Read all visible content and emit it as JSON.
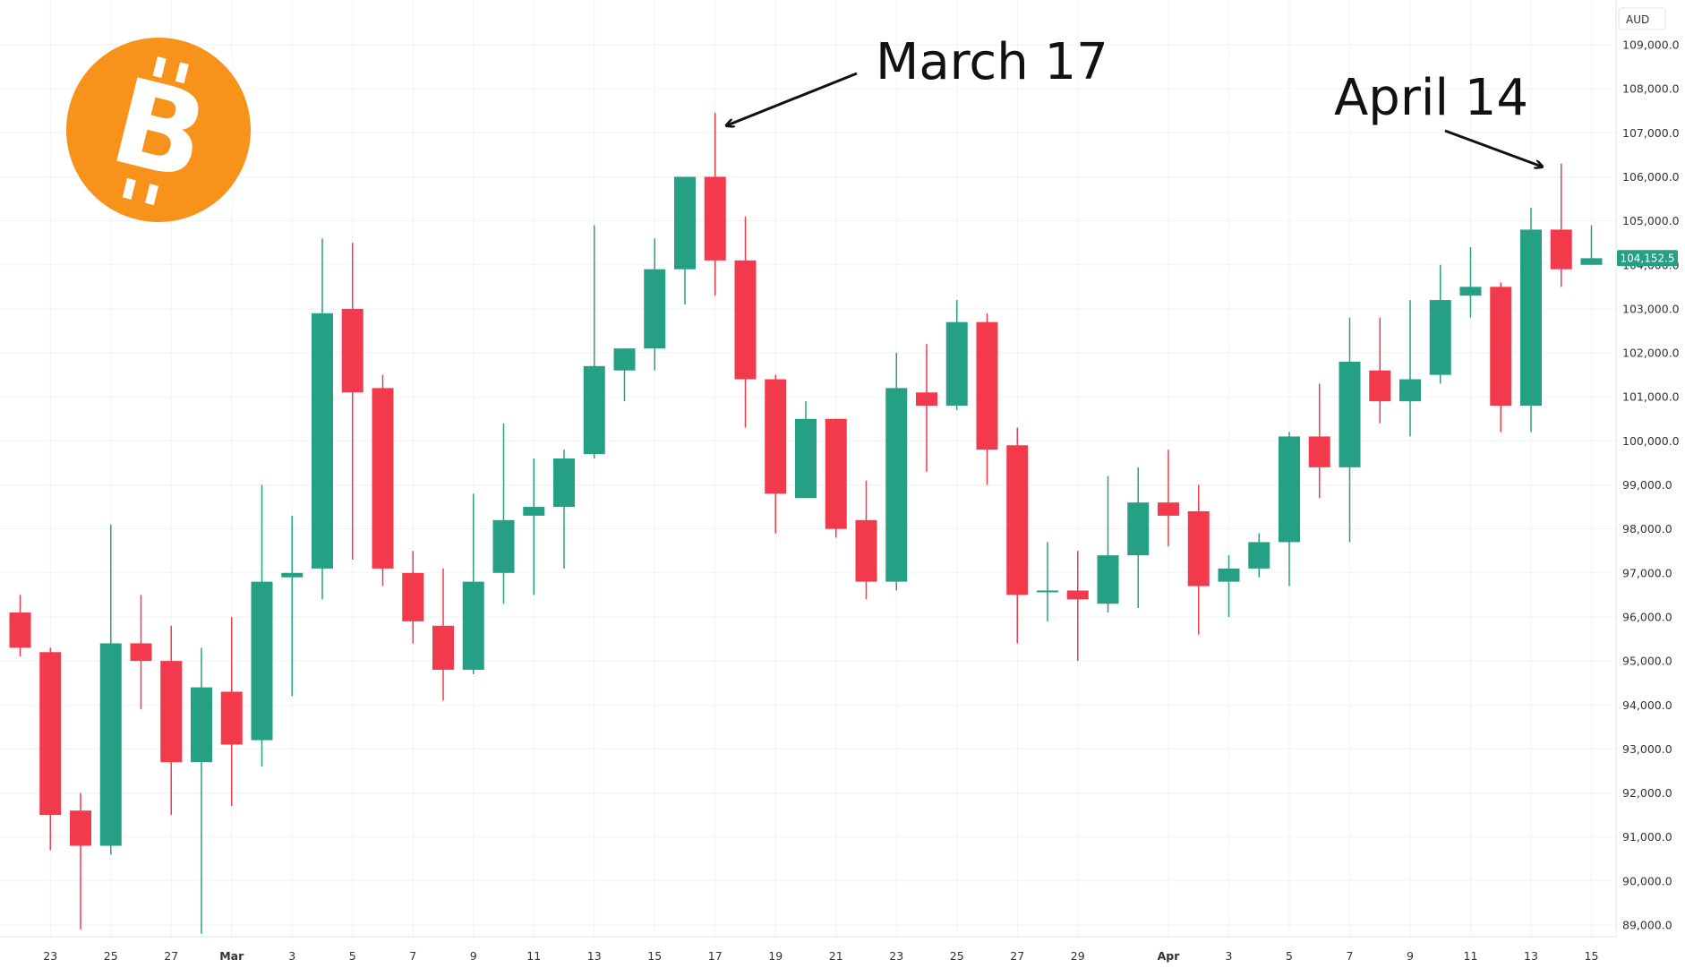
{
  "colors": {
    "up": "#26a085",
    "down": "#f23a4c",
    "grid": "#f0f3f7",
    "axis_text": "#333333",
    "logo_bg": "#f7931a",
    "logo_fg": "#ffffff",
    "annotation": "#111111"
  },
  "logo": {
    "icon": "bitcoin-icon",
    "glyph": "B"
  },
  "chart_data": {
    "type": "candlestick",
    "currency": "AUD",
    "last_price_label": "104,152.5",
    "last_price": 104152.5,
    "ylim": [
      88700,
      109500
    ],
    "y_ticks": [
      89000,
      90000,
      91000,
      92000,
      93000,
      94000,
      95000,
      96000,
      97000,
      98000,
      99000,
      100000,
      101000,
      102000,
      103000,
      104000,
      105000,
      106000,
      107000,
      108000,
      109000
    ],
    "y_tick_labels": [
      "89,000.0",
      "90,000.0",
      "91,000.0",
      "92,000.0",
      "93,000.0",
      "94,000.0",
      "95,000.0",
      "96,000.0",
      "97,000.0",
      "98,000.0",
      "99,000.0",
      "100,000.0",
      "101,000.0",
      "102,000.0",
      "103,000.0",
      "104,000.0",
      "105,000.0",
      "106,000.0",
      "107,000.0",
      "108,000.0",
      "109,000.0"
    ],
    "x_tick_labels": [
      {
        "label": "23",
        "index": 1,
        "bold": false
      },
      {
        "label": "25",
        "index": 3,
        "bold": false
      },
      {
        "label": "27",
        "index": 5,
        "bold": false
      },
      {
        "label": "Mar",
        "index": 7,
        "bold": true
      },
      {
        "label": "3",
        "index": 9,
        "bold": false
      },
      {
        "label": "5",
        "index": 11,
        "bold": false
      },
      {
        "label": "7",
        "index": 13,
        "bold": false
      },
      {
        "label": "9",
        "index": 15,
        "bold": false
      },
      {
        "label": "11",
        "index": 17,
        "bold": false
      },
      {
        "label": "13",
        "index": 19,
        "bold": false
      },
      {
        "label": "15",
        "index": 21,
        "bold": false
      },
      {
        "label": "17",
        "index": 23,
        "bold": false
      },
      {
        "label": "19",
        "index": 25,
        "bold": false
      },
      {
        "label": "21",
        "index": 27,
        "bold": false
      },
      {
        "label": "23",
        "index": 29,
        "bold": false
      },
      {
        "label": "25",
        "index": 31,
        "bold": false
      },
      {
        "label": "27",
        "index": 33,
        "bold": false
      },
      {
        "label": "29",
        "index": 35,
        "bold": false
      },
      {
        "label": "Apr",
        "index": 38,
        "bold": true
      },
      {
        "label": "3",
        "index": 40,
        "bold": false
      },
      {
        "label": "5",
        "index": 42,
        "bold": false
      },
      {
        "label": "7",
        "index": 44,
        "bold": false
      },
      {
        "label": "9",
        "index": 46,
        "bold": false
      },
      {
        "label": "11",
        "index": 48,
        "bold": false
      },
      {
        "label": "13",
        "index": 50,
        "bold": false
      },
      {
        "label": "15",
        "index": 52,
        "bold": false
      }
    ],
    "candles": [
      {
        "o": 96100,
        "h": 96500,
        "l": 95100,
        "c": 95300
      },
      {
        "o": 95200,
        "h": 95300,
        "l": 90700,
        "c": 91500
      },
      {
        "o": 91600,
        "h": 92000,
        "l": 88900,
        "c": 90800
      },
      {
        "o": 90800,
        "h": 98100,
        "l": 90600,
        "c": 95400
      },
      {
        "o": 95400,
        "h": 96500,
        "l": 93900,
        "c": 95000
      },
      {
        "o": 95000,
        "h": 95800,
        "l": 91500,
        "c": 92700
      },
      {
        "o": 92700,
        "h": 95300,
        "l": 88800,
        "c": 94400
      },
      {
        "o": 94300,
        "h": 96000,
        "l": 91700,
        "c": 93100
      },
      {
        "o": 93200,
        "h": 99000,
        "l": 92600,
        "c": 96800
      },
      {
        "o": 96900,
        "h": 98300,
        "l": 94200,
        "c": 97000
      },
      {
        "o": 97100,
        "h": 104600,
        "l": 96400,
        "c": 102900
      },
      {
        "o": 103000,
        "h": 104500,
        "l": 97300,
        "c": 101100
      },
      {
        "o": 101200,
        "h": 101500,
        "l": 96700,
        "c": 97100
      },
      {
        "o": 97000,
        "h": 97500,
        "l": 95400,
        "c": 95900
      },
      {
        "o": 95800,
        "h": 97100,
        "l": 94100,
        "c": 94800
      },
      {
        "o": 94800,
        "h": 98800,
        "l": 94700,
        "c": 96800
      },
      {
        "o": 97000,
        "h": 100400,
        "l": 96300,
        "c": 98200
      },
      {
        "o": 98300,
        "h": 99600,
        "l": 96500,
        "c": 98500
      },
      {
        "o": 98500,
        "h": 99800,
        "l": 97100,
        "c": 99600
      },
      {
        "o": 99700,
        "h": 104900,
        "l": 99600,
        "c": 101700
      },
      {
        "o": 101600,
        "h": 102100,
        "l": 100900,
        "c": 102100
      },
      {
        "o": 102100,
        "h": 104600,
        "l": 101600,
        "c": 103900
      },
      {
        "o": 103900,
        "h": 106000,
        "l": 103100,
        "c": 106000
      },
      {
        "o": 106000,
        "h": 107450,
        "l": 103300,
        "c": 104100
      },
      {
        "o": 104100,
        "h": 105100,
        "l": 100300,
        "c": 101400
      },
      {
        "o": 101400,
        "h": 101500,
        "l": 97900,
        "c": 98800
      },
      {
        "o": 98700,
        "h": 100900,
        "l": 98700,
        "c": 100500
      },
      {
        "o": 100500,
        "h": 100500,
        "l": 97800,
        "c": 98000
      },
      {
        "o": 98200,
        "h": 99100,
        "l": 96400,
        "c": 96800
      },
      {
        "o": 96800,
        "h": 102000,
        "l": 96600,
        "c": 101200
      },
      {
        "o": 101100,
        "h": 102200,
        "l": 99300,
        "c": 100800
      },
      {
        "o": 100800,
        "h": 103200,
        "l": 100700,
        "c": 102700
      },
      {
        "o": 102700,
        "h": 102900,
        "l": 99000,
        "c": 99800
      },
      {
        "o": 99900,
        "h": 100300,
        "l": 95400,
        "c": 96500
      },
      {
        "o": 96600,
        "h": 97700,
        "l": 95900,
        "c": 96600
      },
      {
        "o": 96600,
        "h": 97500,
        "l": 95000,
        "c": 96400
      },
      {
        "o": 96300,
        "h": 99200,
        "l": 96100,
        "c": 97400
      },
      {
        "o": 97400,
        "h": 99400,
        "l": 96200,
        "c": 98600
      },
      {
        "o": 98600,
        "h": 99800,
        "l": 97600,
        "c": 98300
      },
      {
        "o": 98400,
        "h": 99000,
        "l": 95600,
        "c": 96700
      },
      {
        "o": 96800,
        "h": 97400,
        "l": 96000,
        "c": 97100
      },
      {
        "o": 97100,
        "h": 97900,
        "l": 96900,
        "c": 97700
      },
      {
        "o": 97700,
        "h": 100200,
        "l": 96700,
        "c": 100100
      },
      {
        "o": 100100,
        "h": 101300,
        "l": 98700,
        "c": 99400
      },
      {
        "o": 99400,
        "h": 102800,
        "l": 97700,
        "c": 101800
      },
      {
        "o": 101600,
        "h": 102800,
        "l": 100400,
        "c": 100900
      },
      {
        "o": 100900,
        "h": 103200,
        "l": 100100,
        "c": 101400
      },
      {
        "o": 101500,
        "h": 104000,
        "l": 101300,
        "c": 103200
      },
      {
        "o": 103300,
        "h": 104400,
        "l": 102800,
        "c": 103500
      },
      {
        "o": 103500,
        "h": 103600,
        "l": 100200,
        "c": 100800
      },
      {
        "o": 100800,
        "h": 105300,
        "l": 100200,
        "c": 104800
      },
      {
        "o": 104800,
        "h": 106300,
        "l": 103500,
        "c": 103900
      },
      {
        "o": 104000,
        "h": 104900,
        "l": 104000,
        "c": 104150
      }
    ],
    "annotations": [
      {
        "text": "March 17",
        "target_index": 23,
        "target_value": 107450
      },
      {
        "text": "April 14",
        "target_index": 51,
        "target_value": 106300
      }
    ]
  }
}
